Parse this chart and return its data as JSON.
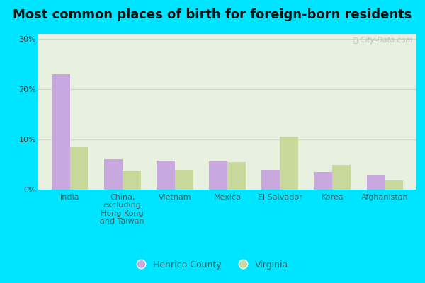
{
  "title": "Most common places of birth for foreign-born residents",
  "categories": [
    "India",
    "China,\nexcluding\nHong Kong\nand Taiwan",
    "Vietnam",
    "Mexico",
    "El Salvador",
    "Korea",
    "Afghanistan"
  ],
  "henrico_values": [
    23.0,
    6.0,
    5.8,
    5.7,
    4.0,
    3.5,
    2.8
  ],
  "virginia_values": [
    8.5,
    3.8,
    3.9,
    5.5,
    10.5,
    5.0,
    1.8
  ],
  "henrico_color": "#c9a8e0",
  "virginia_color": "#c8d89a",
  "bar_width": 0.35,
  "ylim": [
    0,
    31
  ],
  "yticks": [
    0,
    10,
    20,
    30
  ],
  "ytick_labels": [
    "0%",
    "10%",
    "20%",
    "30%"
  ],
  "background_outer": "#00e5ff",
  "background_plot": "#e8f0e0",
  "grid_color": "#d0d8c8",
  "title_fontsize": 13,
  "tick_fontsize": 8,
  "legend_label_henrico": "Henrico County",
  "legend_label_virginia": "Virginia",
  "watermark": "ⓘ City-Data.com"
}
